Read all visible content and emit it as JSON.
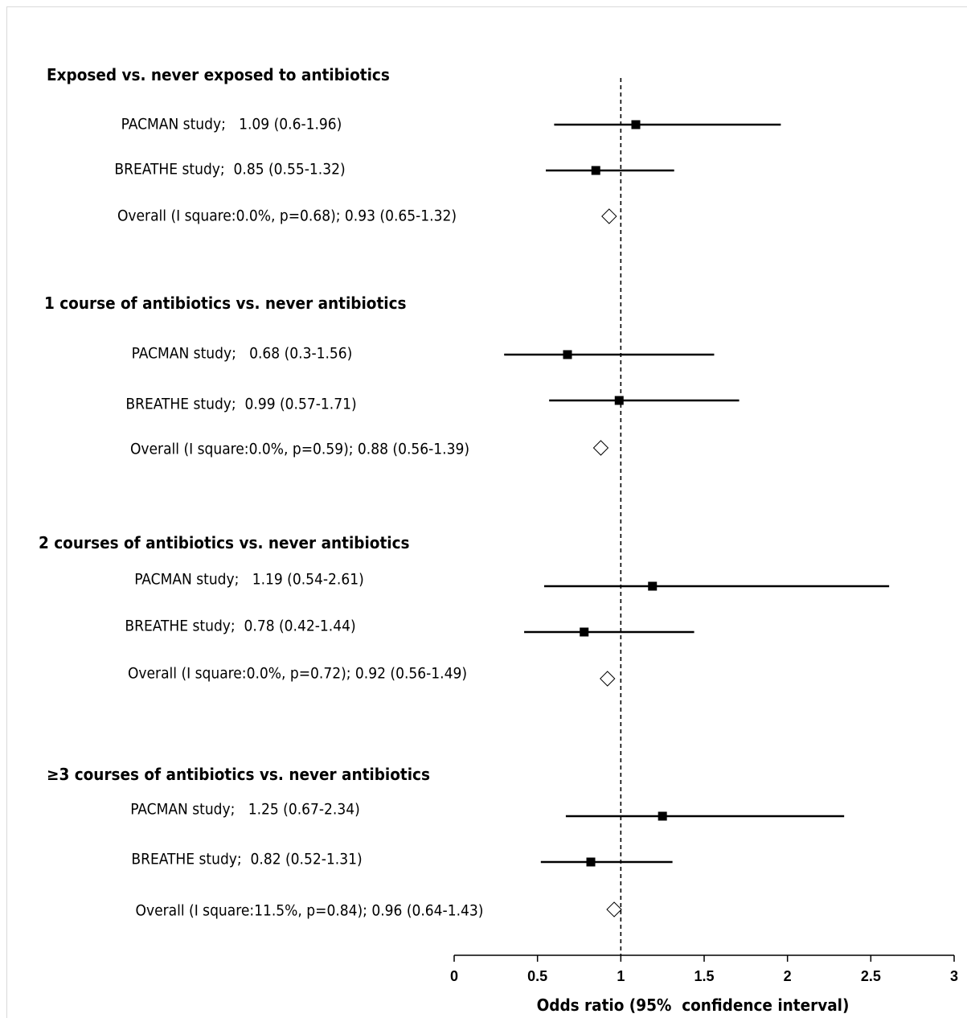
{
  "chart_data": {
    "type": "forest",
    "xlabel": "Odds ratio (95%  confidence interval)",
    "xlim": [
      0,
      3
    ],
    "xticks": [
      "0",
      "0.5",
      "1",
      "1.5",
      "2",
      "2.5",
      "3"
    ],
    "reference_line": 1,
    "groups": [
      {
        "title": "Exposed vs. never exposed to antibiotics",
        "rows": [
          {
            "label": "PACMAN study;   1.09 (0.6-1.96)",
            "or": 1.09,
            "lo": 0.6,
            "hi": 1.96,
            "marker": "square"
          },
          {
            "label": "BREATHE study;  0.85 (0.55-1.32)",
            "or": 0.85,
            "lo": 0.55,
            "hi": 1.32,
            "marker": "square"
          },
          {
            "label": "Overall (I square:0.0%, p=0.68); 0.93 (0.65-1.32)",
            "or": 0.93,
            "lo": 0.65,
            "hi": 1.32,
            "marker": "diamond"
          }
        ]
      },
      {
        "title": "1 course of antibiotics vs. never antibiotics",
        "rows": [
          {
            "label": "PACMAN study;   0.68 (0.3-1.56)",
            "or": 0.68,
            "lo": 0.3,
            "hi": 1.56,
            "marker": "square"
          },
          {
            "label": "BREATHE study;  0.99 (0.57-1.71)",
            "or": 0.99,
            "lo": 0.57,
            "hi": 1.71,
            "marker": "square"
          },
          {
            "label": "Overall (I square:0.0%, p=0.59); 0.88 (0.56-1.39)",
            "or": 0.88,
            "lo": 0.56,
            "hi": 1.39,
            "marker": "diamond"
          }
        ]
      },
      {
        "title": "2 courses of antibiotics vs. never antibiotics",
        "rows": [
          {
            "label": "PACMAN study;   1.19 (0.54-2.61)",
            "or": 1.19,
            "lo": 0.54,
            "hi": 2.61,
            "marker": "square"
          },
          {
            "label": "BREATHE study;  0.78 (0.42-1.44)",
            "or": 0.78,
            "lo": 0.42,
            "hi": 1.44,
            "marker": "square"
          },
          {
            "label": "Overall (I square:0.0%, p=0.72); 0.92 (0.56-1.49)",
            "or": 0.92,
            "lo": 0.56,
            "hi": 1.49,
            "marker": "diamond"
          }
        ]
      },
      {
        "title": "≥3 courses of antibiotics vs. never antibiotics",
        "rows": [
          {
            "label": "PACMAN study;   1.25 (0.67-2.34)",
            "or": 1.25,
            "lo": 0.67,
            "hi": 2.34,
            "marker": "square"
          },
          {
            "label": "BREATHE study;  0.82 (0.52-1.31)",
            "or": 0.82,
            "lo": 0.52,
            "hi": 1.31,
            "marker": "square"
          },
          {
            "label": "Overall (I square:11.5%, p=0.84); 0.96 (0.64-1.43)",
            "or": 0.96,
            "lo": 0.64,
            "hi": 1.43,
            "marker": "diamond"
          }
        ]
      }
    ]
  }
}
